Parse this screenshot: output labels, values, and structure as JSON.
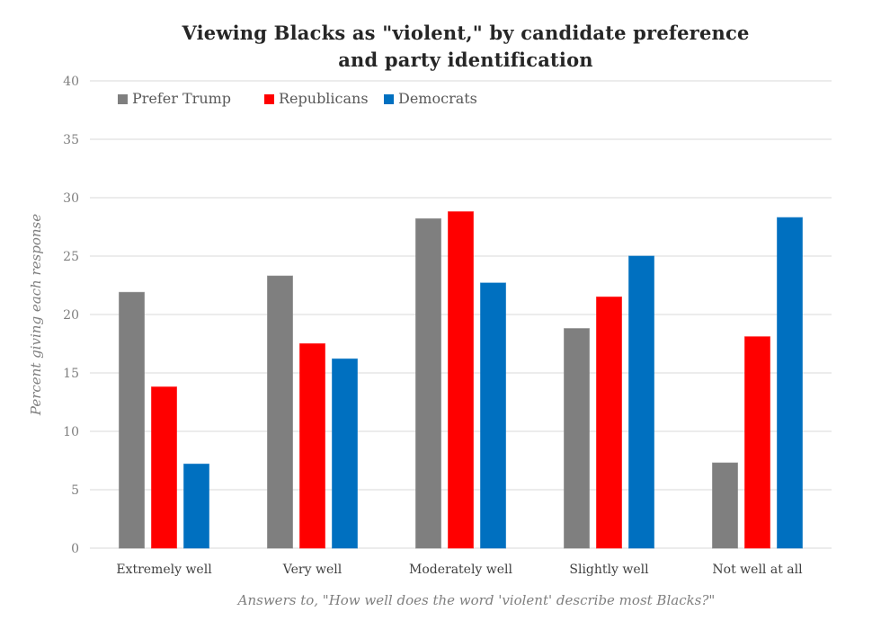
{
  "chart_data": {
    "type": "bar",
    "title_lines": [
      "Viewing Blacks as \"violent,\" by candidate preference",
      "and party identification"
    ],
    "xlabel": "Answers to, \"How well does the word 'violent' describe most Blacks?\"",
    "ylabel": "Percent giving each response",
    "categories": [
      "Extremely well",
      "Very well",
      "Moderately well",
      "Slightly well",
      "Not well at all"
    ],
    "ylim": [
      0,
      40
    ],
    "yticks": [
      0,
      5,
      10,
      15,
      20,
      25,
      30,
      35,
      40
    ],
    "grid": true,
    "legend_position": "top-left",
    "series": [
      {
        "name": "Prefer Trump",
        "color": "#7f7f7f",
        "values": [
          21.9,
          23.3,
          28.2,
          18.8,
          7.3
        ]
      },
      {
        "name": "Republicans",
        "color": "#ff0000",
        "values": [
          13.8,
          17.5,
          28.8,
          21.5,
          18.1
        ]
      },
      {
        "name": "Democrats",
        "color": "#0070c0",
        "values": [
          7.2,
          16.2,
          22.7,
          25.0,
          28.3
        ]
      }
    ]
  }
}
